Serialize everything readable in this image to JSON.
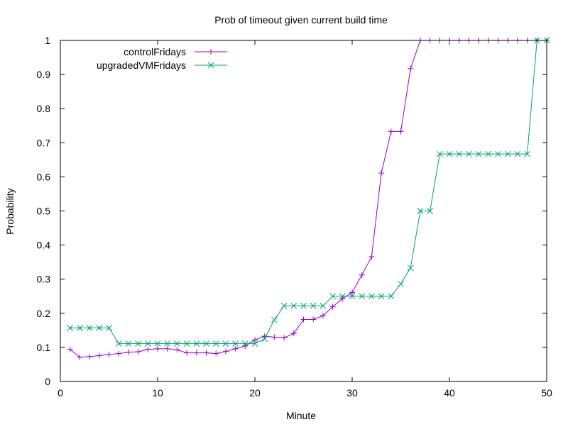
{
  "chart_data": {
    "type": "line",
    "title": "Prob of timeout given current build time",
    "xlabel": "Minute",
    "ylabel": "Probability",
    "xlim": [
      0,
      50
    ],
    "ylim": [
      0,
      1
    ],
    "xticks": [
      0,
      10,
      20,
      30,
      40,
      50
    ],
    "yticks": [
      0,
      0.1,
      0.2,
      0.3,
      0.4,
      0.5,
      0.6,
      0.7,
      0.8,
      0.9,
      1
    ],
    "grid": false,
    "legend_position": "top-left",
    "series": [
      {
        "name": "controlFridays",
        "color": "#9400d3",
        "marker": "plus",
        "x": [
          1,
          2,
          3,
          4,
          5,
          6,
          7,
          8,
          9,
          10,
          11,
          12,
          13,
          14,
          15,
          16,
          17,
          18,
          19,
          20,
          21,
          22,
          23,
          24,
          25,
          26,
          27,
          28,
          29,
          30,
          31,
          32,
          33,
          34,
          35,
          36,
          37,
          38,
          39,
          40,
          41,
          42,
          43,
          44,
          45,
          46,
          47,
          48,
          49,
          50
        ],
        "y": [
          0.094,
          0.071,
          0.073,
          0.076,
          0.079,
          0.082,
          0.086,
          0.087,
          0.094,
          0.096,
          0.096,
          0.093,
          0.084,
          0.084,
          0.084,
          0.082,
          0.088,
          0.096,
          0.104,
          0.122,
          0.133,
          0.13,
          0.128,
          0.141,
          0.182,
          0.182,
          0.193,
          0.219,
          0.243,
          0.261,
          0.312,
          0.366,
          0.611,
          0.733,
          0.733,
          0.917,
          1,
          1,
          1,
          1,
          1,
          1,
          1,
          1,
          1,
          1,
          1,
          1,
          1,
          1
        ]
      },
      {
        "name": "upgradedVMFridays",
        "color": "#009e73",
        "marker": "cross",
        "x": [
          1,
          2,
          3,
          4,
          5,
          6,
          7,
          8,
          9,
          10,
          11,
          12,
          13,
          14,
          15,
          16,
          17,
          18,
          19,
          20,
          21,
          22,
          23,
          24,
          25,
          26,
          27,
          28,
          29,
          30,
          31,
          32,
          33,
          34,
          35,
          36,
          37,
          38,
          39,
          40,
          41,
          42,
          43,
          44,
          45,
          46,
          47,
          48,
          49,
          50
        ],
        "y": [
          0.157,
          0.157,
          0.157,
          0.157,
          0.157,
          0.111,
          0.111,
          0.111,
          0.111,
          0.111,
          0.111,
          0.111,
          0.111,
          0.111,
          0.111,
          0.111,
          0.111,
          0.111,
          0.111,
          0.111,
          0.125,
          0.181,
          0.222,
          0.222,
          0.222,
          0.222,
          0.222,
          0.25,
          0.25,
          0.25,
          0.25,
          0.25,
          0.25,
          0.25,
          0.286,
          0.333,
          0.5,
          0.5,
          0.667,
          0.667,
          0.667,
          0.667,
          0.667,
          0.667,
          0.667,
          0.667,
          0.667,
          0.667,
          1,
          1
        ]
      }
    ]
  }
}
